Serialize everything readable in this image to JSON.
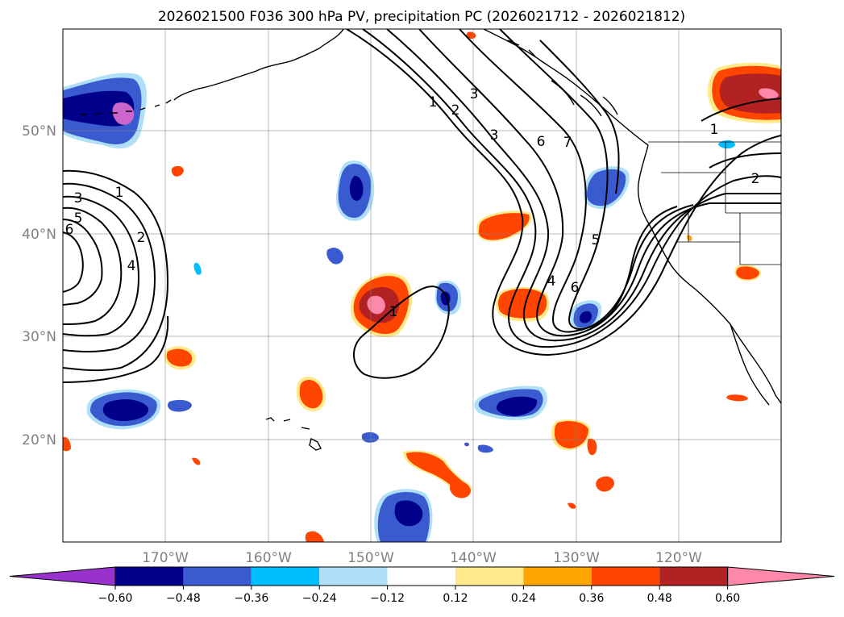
{
  "title": "2026021500 F036 300 hPa PV, precipitation PC (2026021712 - 2026021812)",
  "map": {
    "lat_labels": [
      "50°N",
      "40°N",
      "30°N",
      "20°N"
    ],
    "lon_labels": [
      "170°W",
      "160°W",
      "150°W",
      "140°W",
      "130°W",
      "120°W"
    ]
  },
  "pv_contour_labels": [
    "1",
    "2",
    "3",
    "4",
    "5",
    "6",
    "7"
  ],
  "colorbar": {
    "ticks": [
      "−0.60",
      "−0.48",
      "−0.36",
      "−0.24",
      "−0.12",
      "0.12",
      "0.24",
      "0.36",
      "0.48",
      "0.60"
    ],
    "colors": [
      "#9932cc",
      "#00008b",
      "#3a5bd0",
      "#00bfff",
      "#b0e0f8",
      "#ffffff",
      "#ffe98a",
      "#ffa500",
      "#ff4500",
      "#b22222",
      "#ff88aa"
    ]
  }
}
